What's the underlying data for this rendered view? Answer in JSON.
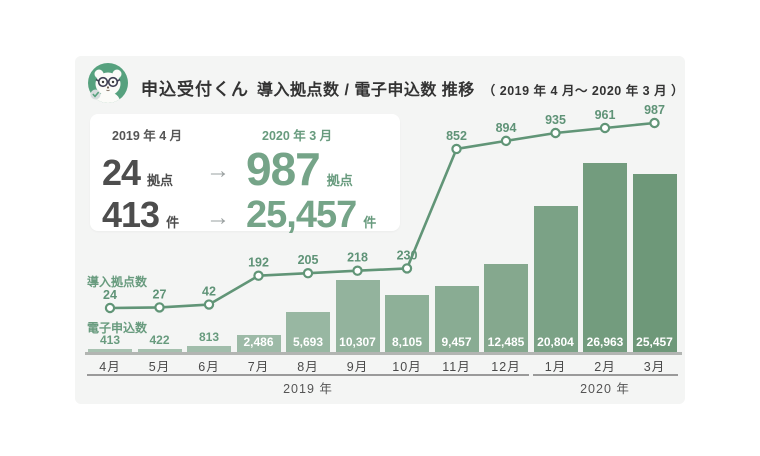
{
  "header": {
    "mascot_icon": "bear-mascot-icon",
    "app_name": "申込受付くん",
    "title": "導入拠点数 / 電子申込数 推移",
    "period": "（ 2019 年 4 月～ 2020 年 3 月 ）"
  },
  "summary": {
    "before_date": "2019 年 4 月",
    "after_date": "2020 年 3 月",
    "arrow": "→",
    "rows": [
      {
        "before": "24",
        "before_unit": "拠点",
        "after": "987",
        "after_unit": "拠点"
      },
      {
        "before": "413",
        "before_unit": "件",
        "after": "25,457",
        "after_unit": "件"
      }
    ]
  },
  "chart_data": {
    "type": "combo-bar-line",
    "categories": [
      "4月",
      "5月",
      "6月",
      "7月",
      "8月",
      "9月",
      "10月",
      "11月",
      "12月",
      "1月",
      "2月",
      "3月"
    ],
    "series": [
      {
        "name": "導入拠点数",
        "type": "line",
        "values": [
          24,
          27,
          42,
          192,
          205,
          218,
          230,
          852,
          894,
          935,
          961,
          987
        ],
        "color": "#619577",
        "marker": "open-circle"
      },
      {
        "name": "電子申込数",
        "type": "bar",
        "values": [
          413,
          422,
          813,
          2486,
          5693,
          10307,
          8105,
          9457,
          12485,
          20804,
          26963,
          25457
        ],
        "display_values": [
          "413",
          "422",
          "813",
          "2,486",
          "5,693",
          "10,307",
          "8,105",
          "9,457",
          "12,485",
          "20,804",
          "26,963",
          "25,457"
        ],
        "bar_colors": [
          "#a8c2b1",
          "#a5c0ae",
          "#a1bdab",
          "#9dbaa7",
          "#98b7a2",
          "#93b39d",
          "#8eb098",
          "#89ac93",
          "#85a88e",
          "#7ba286",
          "#739c7e",
          "#6e9879"
        ]
      }
    ],
    "year_groups": [
      {
        "label": "2019 年",
        "start_index": 0,
        "end_index": 8
      },
      {
        "label": "2020 年",
        "start_index": 9,
        "end_index": 11
      }
    ],
    "ylim_bar": [
      0,
      27000
    ],
    "ylim_line": [
      0,
      1000
    ],
    "grid": false,
    "legend_position": "series labels at left inside plot"
  },
  "colors": {
    "page_bg": "#ffffff",
    "card_bg": "#f4f5f4",
    "accent_green_text": "#689b7e",
    "accent_green_big": "#75a488",
    "line_green": "#619577",
    "dark_text": "#4d4d4d",
    "title_text": "#333333",
    "muted_text": "#555555",
    "arrow_gray": "#9aa0a0",
    "axis_gray": "#b2b5b2",
    "bar_label_on_bar": "#ffffff"
  }
}
